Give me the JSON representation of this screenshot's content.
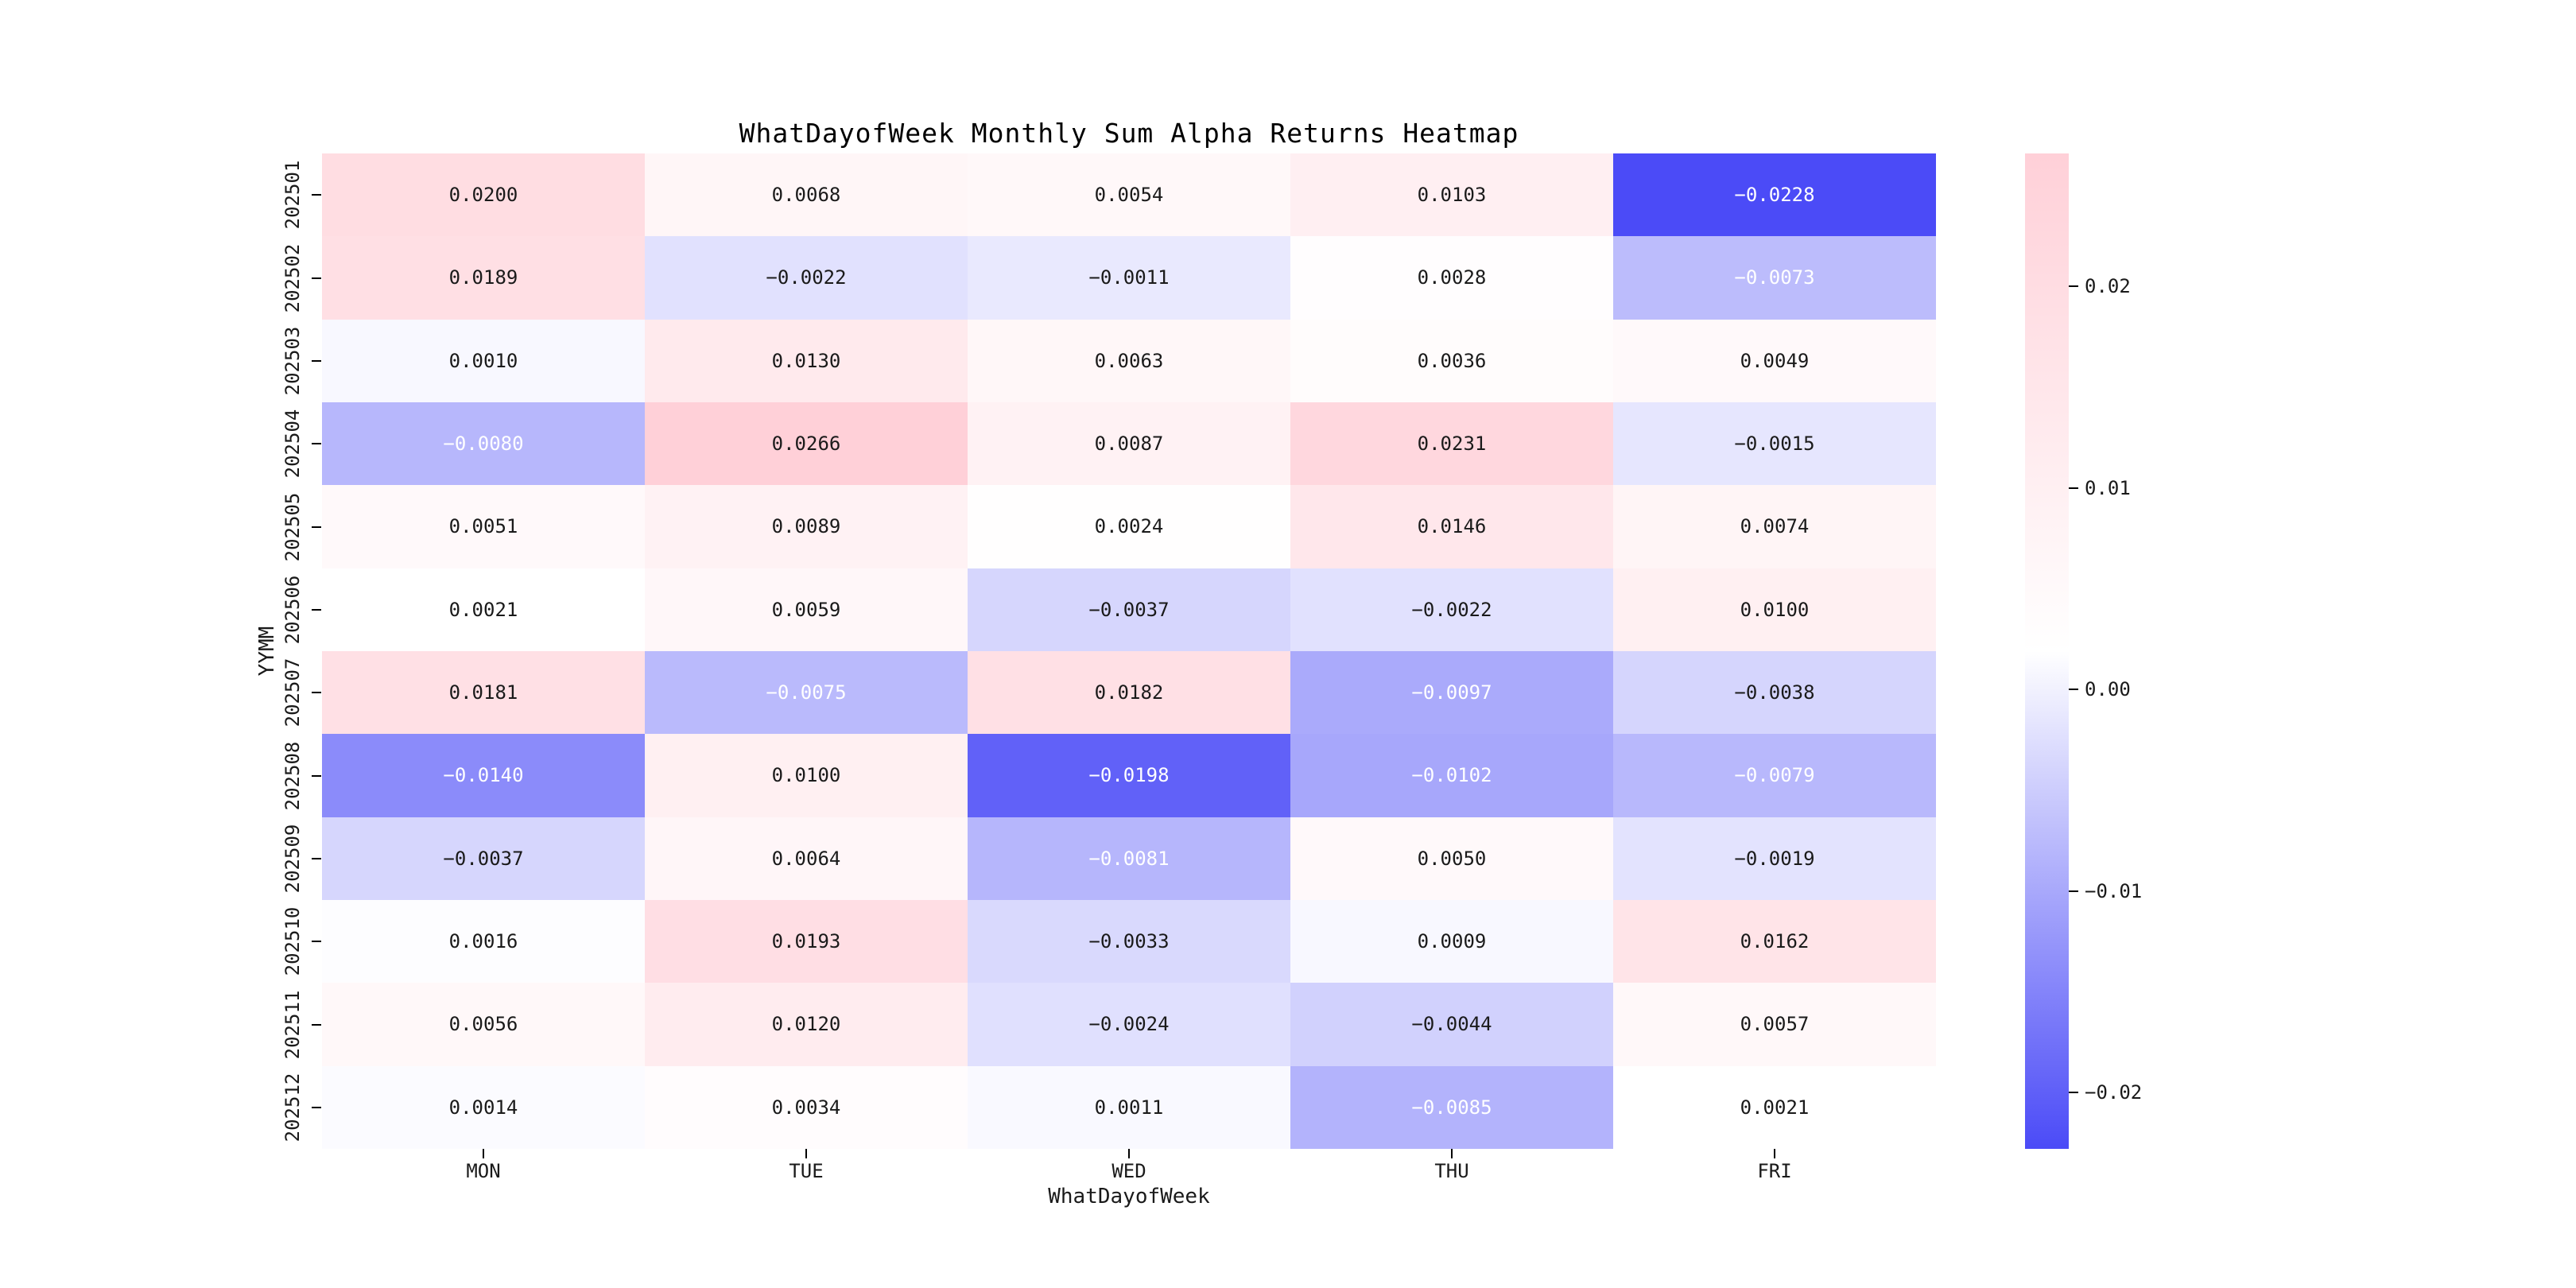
{
  "chart_data": {
    "type": "heatmap",
    "title": "WhatDayofWeek Monthly Sum Alpha Returns Heatmap",
    "xlabel": "WhatDayofWeek",
    "ylabel": "YYMM",
    "columns": [
      "MON",
      "TUE",
      "WED",
      "THU",
      "FRI"
    ],
    "rows": [
      "202501",
      "202502",
      "202503",
      "202504",
      "202505",
      "202506",
      "202507",
      "202508",
      "202509",
      "202510",
      "202511",
      "202512"
    ],
    "values": [
      [
        0.02,
        0.0068,
        0.0054,
        0.0103,
        -0.0228
      ],
      [
        0.0189,
        -0.0022,
        -0.0011,
        0.0028,
        -0.0073
      ],
      [
        0.001,
        0.013,
        0.0063,
        0.0036,
        0.0049
      ],
      [
        -0.008,
        0.0266,
        0.0087,
        0.0231,
        -0.0015
      ],
      [
        0.0051,
        0.0089,
        0.0024,
        0.0146,
        0.0074
      ],
      [
        0.0021,
        0.0059,
        -0.0037,
        -0.0022,
        0.01
      ],
      [
        0.0181,
        -0.0075,
        0.0182,
        -0.0097,
        -0.0038
      ],
      [
        -0.014,
        0.01,
        -0.0198,
        -0.0102,
        -0.0079
      ],
      [
        -0.0037,
        0.0064,
        -0.0081,
        0.005,
        -0.0019
      ],
      [
        0.0016,
        0.0193,
        -0.0033,
        0.0009,
        0.0162
      ],
      [
        0.0056,
        0.012,
        -0.0024,
        -0.0044,
        0.0057
      ],
      [
        0.0014,
        0.0034,
        0.0011,
        -0.0085,
        0.0021
      ]
    ],
    "decimals": 4,
    "vmin": -0.0228,
    "vmax": 0.0266,
    "grid": false,
    "colormap": {
      "negative_end": "#4B4BF7",
      "mid": "#FFFFFF",
      "positive_end": "#FFD0D8"
    },
    "annotation_colors": {
      "dark_text": "#1A1A1A",
      "light_text": "#FFFFFF",
      "light_text_threshold": 0.33
    },
    "colorbar": {
      "position": "right",
      "tick_labels": [
        "0.02",
        "0.01",
        "0.00",
        "-0.01",
        "-0.02"
      ],
      "tick_values": [
        0.02,
        0.01,
        0.0,
        -0.01,
        -0.02
      ]
    }
  }
}
